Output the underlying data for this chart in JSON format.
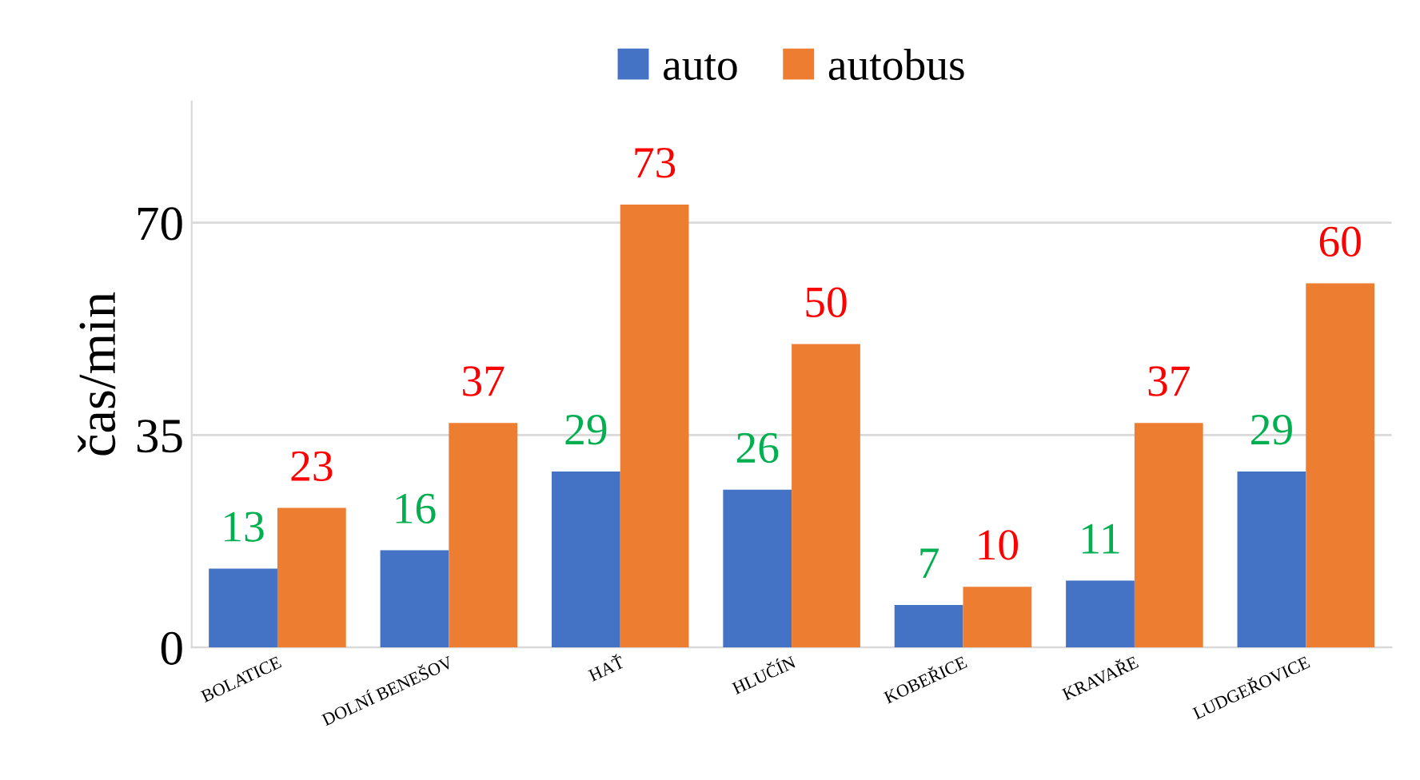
{
  "chart_data": {
    "type": "bar",
    "ylabel": "čas/min",
    "categories": [
      "BOLATICE",
      "DOLNÍ BENEŠOV",
      "HAŤ",
      "HLUČÍN",
      "KOBEŘICE",
      "KRAVAŘE",
      "LUDGEŘOVICE"
    ],
    "series": [
      {
        "name": "auto",
        "color": "#4472c4",
        "values": [
          13,
          16,
          29,
          26,
          7,
          11,
          29
        ]
      },
      {
        "name": "autobus",
        "color": "#ed7d31",
        "values": [
          23,
          37,
          73,
          50,
          10,
          37,
          60
        ]
      }
    ],
    "ylim": [
      0,
      90
    ],
    "yticks": [
      0,
      35,
      70
    ],
    "grid": "y",
    "legend": "top",
    "data_labels": true
  }
}
